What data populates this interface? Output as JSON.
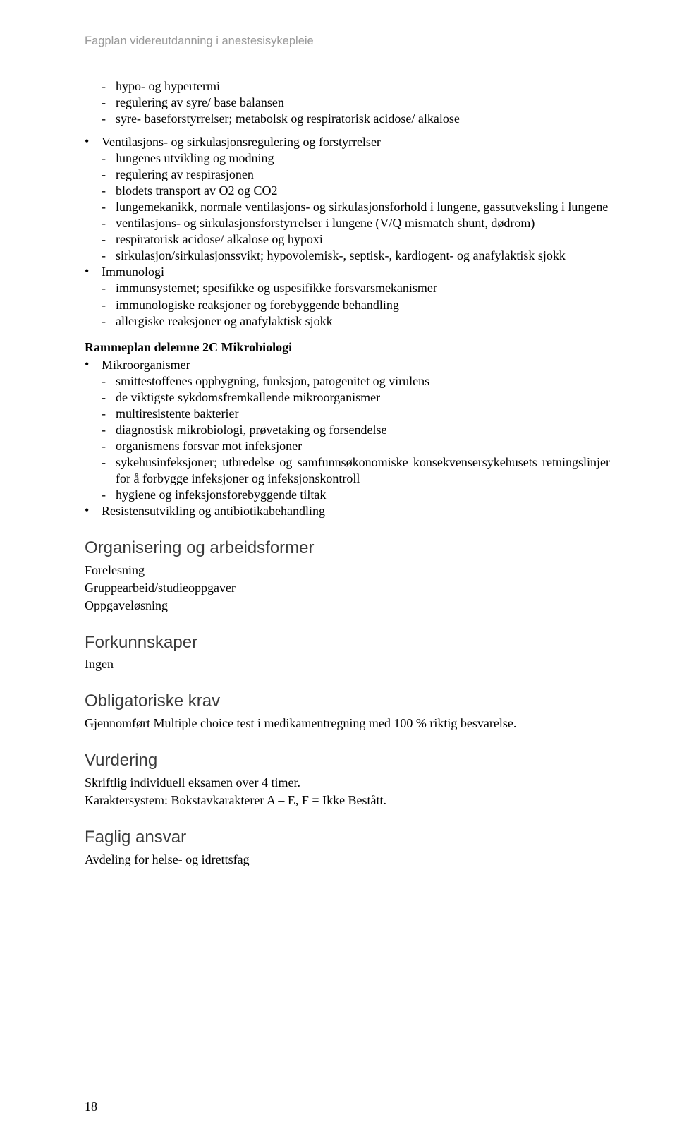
{
  "running_header": "Fagplan videreutdanning i anestesisykepleie",
  "bullet_block_1": {
    "items": [
      "hypo- og hypertermi",
      "regulering av syre/ base balansen",
      "syre- baseforstyrrelser; metabolsk og respiratorisk acidose/ alkalose"
    ]
  },
  "bullet_group_1": [
    {
      "label": "Ventilasjons- og sirkulasjonsregulering og forstyrrelser",
      "items": [
        "lungenes utvikling og modning",
        "regulering av respirasjonen",
        "blodets transport av O2 og CO2",
        "lungemekanikk, normale ventilasjons- og sirkulasjonsforhold i lungene, gassutveksling i lungene",
        "ventilasjons- og sirkulasjonsforstyrrelser i lungene (V/Q mismatch shunt, dødrom)",
        "respiratorisk acidose/ alkalose og hypoxi",
        "sirkulasjon/sirkulasjonssvikt; hypovolemisk-, septisk-, kardiogent- og anafylaktisk sjokk"
      ]
    },
    {
      "label": "Immunologi",
      "items": [
        "immunsystemet; spesifikke og uspesifikke forsvarsmekanismer",
        "immunologiske reaksjoner og forebyggende behandling",
        "allergiske reaksjoner og anafylaktisk sjokk"
      ]
    }
  ],
  "rammeplan_heading": "Rammeplan delemne 2C Mikrobiologi",
  "bullet_group_2": [
    {
      "label": "Mikroorganismer",
      "items": [
        "smittestoffenes oppbygning, funksjon, patogenitet og virulens",
        "de viktigste sykdomsfremkallende mikroorganismer",
        "multiresistente bakterier",
        "diagnostisk mikrobiologi, prøvetaking og forsendelse",
        "organismens forsvar mot infeksjoner",
        "sykehusinfeksjoner; utbredelse og samfunnsøkonomiske konsekvensersykehusets retningslinjer for å forbygge infeksjoner og infeksjonskontroll",
        "hygiene og infeksjonsforebyggende tiltak"
      ]
    },
    {
      "label": "Resistensutvikling og antibiotikabehandling",
      "items": []
    }
  ],
  "sections": {
    "organisering": {
      "heading": "Organisering og arbeidsformer",
      "lines": [
        "Forelesning",
        "Gruppearbeid/studieoppgaver",
        "Oppgaveløsning"
      ]
    },
    "forkunnskaper": {
      "heading": "Forkunnskaper",
      "lines": [
        "Ingen"
      ]
    },
    "obligatoriske": {
      "heading": "Obligatoriske krav",
      "lines": [
        "Gjennomført Multiple choice test i medikamentregning med 100 % riktig besvarelse."
      ]
    },
    "vurdering": {
      "heading": "Vurdering",
      "lines": [
        "Skriftlig individuell eksamen over 4 timer.",
        "Karaktersystem: Bokstavkarakterer A – E, F = Ikke Bestått."
      ]
    },
    "faglig": {
      "heading": "Faglig ansvar",
      "lines": [
        "Avdeling for helse- og idrettsfag"
      ]
    }
  },
  "page_number": "18"
}
